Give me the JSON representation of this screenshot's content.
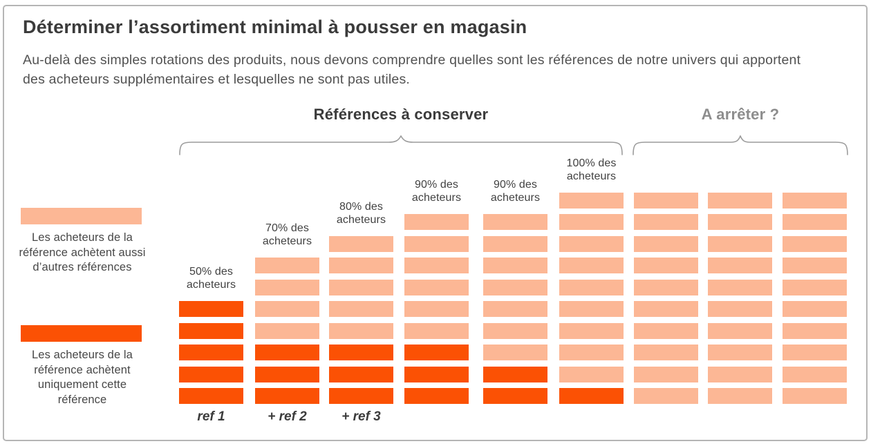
{
  "title": "Déterminer l’assortiment minimal à pousser en magasin",
  "subtitle": "Au-delà des simples rotations des produits, nous devons comprendre quelles sont les références de notre univers qui apportent des acheteurs supplémentaires et lesquelles ne sont pas utiles.",
  "groups": {
    "keep_label": "Références à conserver",
    "stop_label": "A arrêter ?"
  },
  "legend": {
    "light": {
      "color": "#FCB795",
      "text": "Les acheteurs de la référence achètent aussi d’autres références"
    },
    "dark": {
      "color": "#FB5104",
      "text": "Les acheteurs de la référence achètent uniquement cette référence"
    }
  },
  "colors": {
    "dark_orange": "#FB5104",
    "light_orange": "#FCB795",
    "title_text": "#3b3b3b",
    "muted_header": "#8d8d8d",
    "brace": "#9c9c9c",
    "frame_border": "#b5b5b5"
  },
  "chart_data": {
    "type": "bar",
    "subtype": "stacked unit-block (waffle) columns",
    "legend_position": "left",
    "series_legend": {
      "dark": "Les acheteurs de la référence achètent uniquement cette référence",
      "light": "Les acheteurs de la référence achètent aussi d’autres références"
    },
    "columns": [
      {
        "axis_label": "ref 1",
        "annotation": "50% des acheteurs",
        "blocks_total": 5,
        "blocks_dark": 5,
        "blocks_light": 0,
        "group": "Références à conserver"
      },
      {
        "axis_label": "+ ref 2",
        "annotation": "70% des acheteurs",
        "blocks_total": 7,
        "blocks_dark": 3,
        "blocks_light": 4,
        "group": "Références à conserver"
      },
      {
        "axis_label": "+ ref 3",
        "annotation": "80% des acheteurs",
        "blocks_total": 8,
        "blocks_dark": 3,
        "blocks_light": 5,
        "group": "Références à conserver"
      },
      {
        "axis_label": "",
        "annotation": "90% des acheteurs",
        "blocks_total": 9,
        "blocks_dark": 3,
        "blocks_light": 6,
        "group": "Références à conserver"
      },
      {
        "axis_label": "",
        "annotation": "90% des acheteurs",
        "blocks_total": 9,
        "blocks_dark": 2,
        "blocks_light": 7,
        "group": "Références à conserver"
      },
      {
        "axis_label": "",
        "annotation": "100% des acheteurs",
        "blocks_total": 10,
        "blocks_dark": 1,
        "blocks_light": 9,
        "group": "Références à conserver"
      },
      {
        "axis_label": "",
        "annotation": "",
        "blocks_total": 10,
        "blocks_dark": 0,
        "blocks_light": 10,
        "group": "A arrêter ?"
      },
      {
        "axis_label": "",
        "annotation": "",
        "blocks_total": 10,
        "blocks_dark": 0,
        "blocks_light": 10,
        "group": "A arrêter ?"
      },
      {
        "axis_label": "",
        "annotation": "",
        "blocks_total": 10,
        "blocks_dark": 0,
        "blocks_light": 10,
        "group": "A arrêter ?"
      }
    ]
  }
}
